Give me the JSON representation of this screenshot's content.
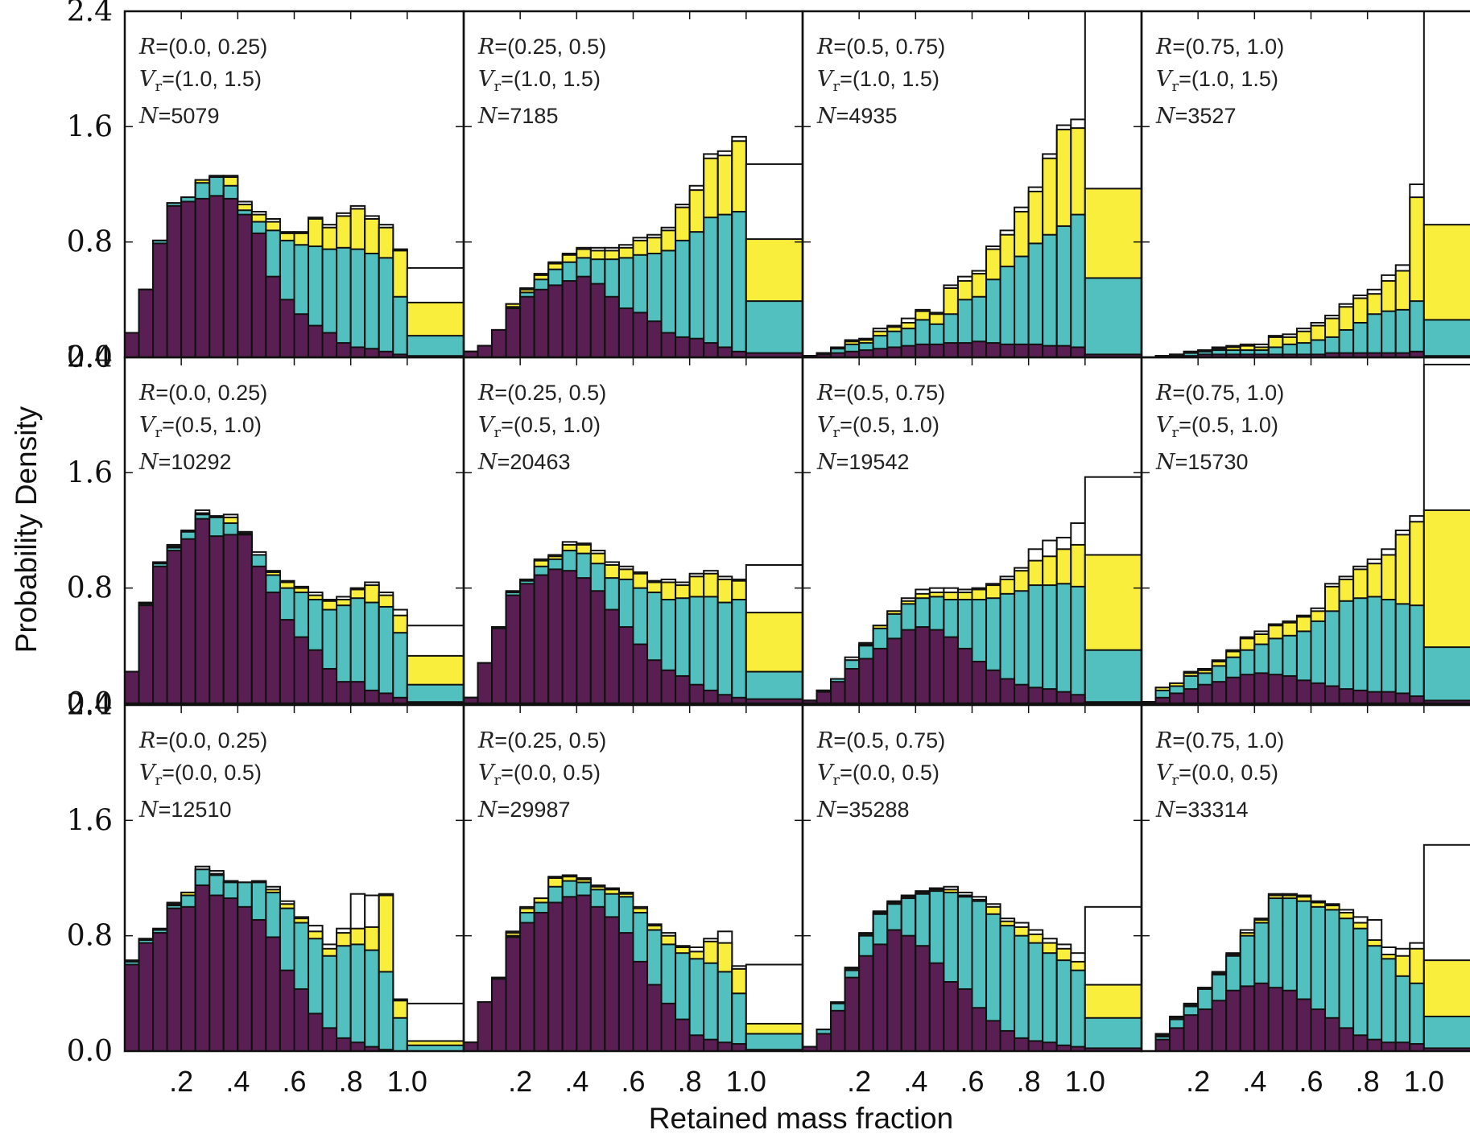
{
  "figure": {
    "ylabel": "Probability Density",
    "xlabel": "Retained mass fraction",
    "colors": {
      "purple": "#5a1f52",
      "teal": "#52c0bf",
      "yellow": "#f9ee3c",
      "outline": "#111111"
    }
  },
  "chart_data": {
    "type": "bar",
    "subtype": "stacked histogram grid",
    "layout": "3 rows x 4 columns, shared axes",
    "xlabel": "Retained mass fraction",
    "ylabel": "Probability Density",
    "ylim": [
      0,
      2.4
    ],
    "yticks": [
      "0.0",
      "0.8",
      "1.6",
      "2.4"
    ],
    "xticks": [
      ".2",
      ".4",
      ".6",
      ".8",
      "1.0"
    ],
    "xtick_values": [
      0.2,
      0.4,
      0.6,
      0.8,
      1.0
    ],
    "bin_edges": [
      0.0,
      0.05,
      0.1,
      0.15,
      0.2,
      0.25,
      0.3,
      0.35,
      0.4,
      0.45,
      0.5,
      0.55,
      0.6,
      0.65,
      0.7,
      0.75,
      0.8,
      0.85,
      0.9,
      0.95,
      1.0,
      1.2
    ],
    "stack_order": [
      "purple",
      "teal",
      "yellow"
    ],
    "panels": [
      {
        "R_text": "=(0.0, 0.25)",
        "Vr_text": "=(1.0, 1.5)",
        "N_text": "=5079",
        "purple": [
          0.17,
          0.47,
          0.79,
          1.05,
          1.08,
          1.1,
          1.12,
          1.1,
          0.99,
          0.86,
          0.56,
          0.4,
          0.3,
          0.22,
          0.17,
          0.1,
          0.07,
          0.06,
          0.04,
          0.02,
          0.01
        ],
        "teal": [
          0.17,
          0.47,
          0.81,
          1.07,
          1.11,
          1.21,
          1.25,
          1.19,
          1.02,
          0.94,
          0.88,
          0.81,
          0.78,
          0.77,
          0.75,
          0.76,
          0.75,
          0.72,
          0.69,
          0.42,
          0.15
        ],
        "yellow": [
          0.17,
          0.47,
          0.81,
          1.07,
          1.11,
          1.23,
          1.25,
          1.25,
          1.06,
          0.99,
          0.94,
          0.86,
          0.86,
          0.96,
          0.9,
          0.98,
          1.03,
          0.96,
          0.9,
          0.74,
          0.38
        ],
        "total": [
          0.17,
          0.47,
          0.81,
          1.07,
          1.11,
          1.23,
          1.26,
          1.26,
          1.08,
          1.01,
          0.96,
          0.87,
          0.87,
          0.97,
          0.92,
          1.0,
          1.05,
          0.98,
          0.92,
          0.75,
          0.62
        ]
      },
      {
        "R_text": "=(0.25, 0.5)",
        "Vr_text": "=(1.0, 1.5)",
        "N_text": "=7185",
        "purple": [
          0.04,
          0.08,
          0.19,
          0.34,
          0.42,
          0.47,
          0.5,
          0.53,
          0.56,
          0.51,
          0.42,
          0.34,
          0.31,
          0.25,
          0.17,
          0.14,
          0.13,
          0.1,
          0.07,
          0.04,
          0.03
        ],
        "teal": [
          0.04,
          0.08,
          0.19,
          0.35,
          0.45,
          0.54,
          0.61,
          0.66,
          0.69,
          0.68,
          0.68,
          0.69,
          0.71,
          0.72,
          0.74,
          0.81,
          0.87,
          0.97,
          0.99,
          1.01,
          0.39
        ],
        "yellow": [
          0.04,
          0.08,
          0.19,
          0.37,
          0.47,
          0.57,
          0.65,
          0.71,
          0.75,
          0.74,
          0.74,
          0.76,
          0.81,
          0.83,
          0.88,
          1.04,
          1.16,
          1.38,
          1.4,
          1.5,
          0.82
        ],
        "total": [
          0.04,
          0.08,
          0.19,
          0.37,
          0.48,
          0.58,
          0.66,
          0.72,
          0.76,
          0.76,
          0.76,
          0.78,
          0.83,
          0.85,
          0.9,
          1.06,
          1.19,
          1.41,
          1.43,
          1.53,
          1.34
        ]
      },
      {
        "R_text": "=(0.5, 0.75)",
        "Vr_text": "=(1.0, 1.5)",
        "N_text": "=4935",
        "purple": [
          0.01,
          0.02,
          0.03,
          0.04,
          0.05,
          0.06,
          0.07,
          0.08,
          0.09,
          0.09,
          0.1,
          0.1,
          0.11,
          0.1,
          0.09,
          0.09,
          0.09,
          0.08,
          0.08,
          0.07,
          0.02
        ],
        "teal": [
          0.01,
          0.03,
          0.06,
          0.09,
          0.1,
          0.15,
          0.18,
          0.2,
          0.26,
          0.23,
          0.3,
          0.4,
          0.42,
          0.54,
          0.63,
          0.7,
          0.79,
          0.85,
          0.91,
          0.99,
          0.55
        ],
        "yellow": [
          0.01,
          0.03,
          0.06,
          0.11,
          0.12,
          0.18,
          0.21,
          0.24,
          0.32,
          0.3,
          0.48,
          0.53,
          0.58,
          0.75,
          0.85,
          1.01,
          1.15,
          1.38,
          1.58,
          1.59,
          1.17
        ],
        "total": [
          0.01,
          0.03,
          0.07,
          0.12,
          0.13,
          0.2,
          0.22,
          0.27,
          0.33,
          0.31,
          0.5,
          0.56,
          0.6,
          0.77,
          0.88,
          1.04,
          1.18,
          1.41,
          1.61,
          1.65,
          2.4
        ]
      },
      {
        "R_text": "=(0.75, 1.0)",
        "Vr_text": "=(1.0, 1.5)",
        "N_text": "=3527",
        "purple": [
          0.0,
          0.0,
          0.01,
          0.01,
          0.02,
          0.02,
          0.02,
          0.02,
          0.02,
          0.02,
          0.02,
          0.02,
          0.02,
          0.03,
          0.03,
          0.03,
          0.03,
          0.03,
          0.03,
          0.04,
          0.01
        ],
        "teal": [
          0.0,
          0.01,
          0.02,
          0.03,
          0.04,
          0.05,
          0.05,
          0.05,
          0.05,
          0.07,
          0.09,
          0.1,
          0.12,
          0.14,
          0.19,
          0.24,
          0.3,
          0.32,
          0.33,
          0.39,
          0.26
        ],
        "yellow": [
          0.0,
          0.01,
          0.02,
          0.04,
          0.05,
          0.06,
          0.07,
          0.08,
          0.07,
          0.14,
          0.14,
          0.18,
          0.22,
          0.27,
          0.35,
          0.41,
          0.44,
          0.53,
          0.6,
          1.11,
          0.92
        ],
        "total": [
          0.0,
          0.01,
          0.02,
          0.04,
          0.05,
          0.07,
          0.08,
          0.09,
          0.09,
          0.15,
          0.16,
          0.2,
          0.24,
          0.29,
          0.37,
          0.43,
          0.47,
          0.57,
          0.64,
          1.2,
          2.6
        ]
      },
      {
        "R_text": "=(0.0, 0.25)",
        "Vr_text": "=(0.5, 1.0)",
        "N_text": "=10292",
        "purple": [
          0.22,
          0.68,
          0.95,
          1.06,
          1.14,
          1.28,
          1.16,
          1.17,
          1.17,
          0.95,
          0.77,
          0.58,
          0.46,
          0.37,
          0.24,
          0.15,
          0.15,
          0.09,
          0.07,
          0.04,
          0.01
        ],
        "teal": [
          0.22,
          0.69,
          0.97,
          1.08,
          1.19,
          1.31,
          1.29,
          1.25,
          1.17,
          1.03,
          0.89,
          0.8,
          0.77,
          0.72,
          0.65,
          0.68,
          0.73,
          0.7,
          0.67,
          0.49,
          0.13
        ],
        "yellow": [
          0.22,
          0.69,
          0.97,
          1.09,
          1.19,
          1.32,
          1.29,
          1.29,
          1.18,
          1.03,
          0.91,
          0.84,
          0.8,
          0.75,
          0.71,
          0.72,
          0.79,
          0.82,
          0.75,
          0.61,
          0.33
        ],
        "total": [
          0.22,
          0.7,
          0.98,
          1.1,
          1.2,
          1.34,
          1.3,
          1.31,
          1.19,
          1.05,
          0.92,
          0.85,
          0.81,
          0.77,
          0.72,
          0.74,
          0.8,
          0.84,
          0.77,
          0.65,
          0.54
        ]
      },
      {
        "R_text": "=(0.25, 0.5)",
        "Vr_text": "=(0.5, 1.0)",
        "N_text": "=20463",
        "purple": [
          0.04,
          0.28,
          0.52,
          0.75,
          0.83,
          0.89,
          0.93,
          0.92,
          0.87,
          0.78,
          0.65,
          0.53,
          0.41,
          0.3,
          0.23,
          0.19,
          0.13,
          0.09,
          0.06,
          0.04,
          0.03
        ],
        "teal": [
          0.04,
          0.28,
          0.53,
          0.77,
          0.85,
          0.95,
          1.0,
          1.06,
          1.04,
          0.97,
          0.87,
          0.86,
          0.8,
          0.77,
          0.72,
          0.73,
          0.74,
          0.74,
          0.7,
          0.72,
          0.22
        ],
        "yellow": [
          0.04,
          0.28,
          0.53,
          0.77,
          0.86,
          0.99,
          1.02,
          1.1,
          1.1,
          1.04,
          0.96,
          0.93,
          0.9,
          0.84,
          0.84,
          0.82,
          0.88,
          0.9,
          0.86,
          0.85,
          0.63
        ],
        "total": [
          0.04,
          0.28,
          0.53,
          0.78,
          0.86,
          1.0,
          1.03,
          1.12,
          1.11,
          1.06,
          0.98,
          0.95,
          0.91,
          0.85,
          0.86,
          0.84,
          0.9,
          0.92,
          0.88,
          0.86,
          0.96
        ]
      },
      {
        "R_text": "=(0.5, 0.75)",
        "Vr_text": "=(0.5, 1.0)",
        "N_text": "=19542",
        "purple": [
          0.02,
          0.08,
          0.15,
          0.24,
          0.31,
          0.38,
          0.45,
          0.51,
          0.53,
          0.51,
          0.46,
          0.38,
          0.29,
          0.23,
          0.17,
          0.13,
          0.11,
          0.1,
          0.08,
          0.06,
          0.01
        ],
        "teal": [
          0.02,
          0.09,
          0.17,
          0.3,
          0.4,
          0.52,
          0.62,
          0.69,
          0.73,
          0.74,
          0.72,
          0.72,
          0.72,
          0.73,
          0.76,
          0.78,
          0.82,
          0.82,
          0.83,
          0.81,
          0.37
        ],
        "yellow": [
          0.02,
          0.09,
          0.17,
          0.3,
          0.41,
          0.54,
          0.64,
          0.71,
          0.76,
          0.77,
          0.77,
          0.77,
          0.79,
          0.82,
          0.86,
          0.92,
          0.99,
          1.02,
          1.07,
          1.1,
          1.03
        ],
        "total": [
          0.02,
          0.09,
          0.17,
          0.32,
          0.42,
          0.54,
          0.64,
          0.73,
          0.79,
          0.8,
          0.8,
          0.79,
          0.8,
          0.83,
          0.88,
          0.94,
          1.07,
          1.13,
          1.15,
          1.25,
          1.57
        ]
      },
      {
        "R_text": "=(0.75, 1.0)",
        "Vr_text": "=(0.5, 1.0)",
        "N_text": "=15730",
        "purple": [
          0.01,
          0.04,
          0.07,
          0.1,
          0.13,
          0.15,
          0.18,
          0.2,
          0.21,
          0.2,
          0.19,
          0.16,
          0.14,
          0.12,
          0.1,
          0.09,
          0.08,
          0.08,
          0.07,
          0.05,
          0.02
        ],
        "teal": [
          0.01,
          0.09,
          0.12,
          0.19,
          0.21,
          0.26,
          0.32,
          0.37,
          0.41,
          0.45,
          0.47,
          0.5,
          0.57,
          0.64,
          0.71,
          0.73,
          0.74,
          0.72,
          0.69,
          0.68,
          0.39
        ],
        "yellow": [
          0.01,
          0.11,
          0.14,
          0.21,
          0.23,
          0.29,
          0.36,
          0.45,
          0.48,
          0.54,
          0.56,
          0.6,
          0.64,
          0.81,
          0.86,
          0.93,
          0.97,
          1.03,
          1.17,
          1.26,
          1.34
        ],
        "total": [
          0.01,
          0.11,
          0.14,
          0.22,
          0.24,
          0.3,
          0.37,
          0.46,
          0.5,
          0.55,
          0.57,
          0.61,
          0.66,
          0.83,
          0.88,
          0.95,
          1.0,
          1.07,
          1.2,
          1.3,
          2.35
        ]
      },
      {
        "R_text": "=(0.0, 0.25)",
        "Vr_text": "=(0.0, 0.5)",
        "N_text": "=12510",
        "purple": [
          0.6,
          0.75,
          0.82,
          0.99,
          1.0,
          1.15,
          1.08,
          1.06,
          1.0,
          0.91,
          0.79,
          0.56,
          0.43,
          0.26,
          0.16,
          0.09,
          0.06,
          0.03,
          0.01,
          0.0,
          0.0
        ],
        "teal": [
          0.62,
          0.77,
          0.84,
          1.01,
          1.08,
          1.26,
          1.22,
          1.17,
          1.17,
          1.17,
          1.1,
          0.99,
          0.89,
          0.78,
          0.66,
          0.73,
          0.74,
          0.7,
          0.55,
          0.23,
          0.04
        ],
        "yellow": [
          0.62,
          0.77,
          0.84,
          1.02,
          1.1,
          1.26,
          1.23,
          1.18,
          1.17,
          1.17,
          1.12,
          1.02,
          0.92,
          0.83,
          0.71,
          0.82,
          0.85,
          0.86,
          1.08,
          0.35,
          0.07
        ],
        "total": [
          0.63,
          0.78,
          0.85,
          1.03,
          1.1,
          1.28,
          1.25,
          1.18,
          1.17,
          1.18,
          1.14,
          1.04,
          0.93,
          0.87,
          0.74,
          0.85,
          1.09,
          1.08,
          1.09,
          0.36,
          0.33
        ]
      },
      {
        "R_text": "=(0.25, 0.5)",
        "Vr_text": "=(0.0, 0.5)",
        "N_text": "=29987",
        "purple": [
          0.06,
          0.34,
          0.5,
          0.79,
          0.89,
          0.96,
          1.03,
          1.07,
          1.08,
          1.0,
          0.93,
          0.82,
          0.62,
          0.46,
          0.33,
          0.22,
          0.11,
          0.08,
          0.06,
          0.05,
          0.01
        ],
        "teal": [
          0.06,
          0.34,
          0.5,
          0.8,
          0.96,
          1.03,
          1.14,
          1.18,
          1.17,
          1.12,
          1.09,
          1.07,
          0.96,
          0.84,
          0.74,
          0.68,
          0.64,
          0.61,
          0.55,
          0.4,
          0.12
        ],
        "yellow": [
          0.06,
          0.34,
          0.51,
          0.82,
          0.99,
          1.06,
          1.2,
          1.21,
          1.19,
          1.14,
          1.12,
          1.09,
          0.99,
          0.87,
          0.8,
          0.72,
          0.69,
          0.76,
          0.75,
          0.57,
          0.19
        ],
        "total": [
          0.06,
          0.34,
          0.51,
          0.83,
          1.0,
          1.06,
          1.21,
          1.22,
          1.2,
          1.15,
          1.13,
          1.1,
          1.0,
          0.88,
          0.82,
          0.73,
          0.72,
          0.78,
          0.83,
          0.59,
          0.6
        ]
      },
      {
        "R_text": "=(0.5, 0.75)",
        "Vr_text": "=(0.0, 0.5)",
        "N_text": "=35288",
        "purple": [
          0.03,
          0.12,
          0.28,
          0.51,
          0.66,
          0.74,
          0.84,
          0.8,
          0.73,
          0.61,
          0.48,
          0.43,
          0.3,
          0.21,
          0.14,
          0.09,
          0.07,
          0.06,
          0.04,
          0.03,
          0.02
        ],
        "teal": [
          0.03,
          0.15,
          0.33,
          0.56,
          0.8,
          0.95,
          1.02,
          1.06,
          1.09,
          1.11,
          1.1,
          1.07,
          1.04,
          0.95,
          0.87,
          0.8,
          0.75,
          0.68,
          0.63,
          0.56,
          0.23
        ],
        "yellow": [
          0.03,
          0.15,
          0.33,
          0.57,
          0.81,
          0.96,
          1.03,
          1.07,
          1.1,
          1.12,
          1.12,
          1.08,
          1.05,
          1.0,
          0.9,
          0.86,
          0.81,
          0.75,
          0.71,
          0.62,
          0.46
        ],
        "total": [
          0.03,
          0.15,
          0.34,
          0.58,
          0.82,
          0.97,
          1.04,
          1.08,
          1.11,
          1.13,
          1.14,
          1.1,
          1.07,
          1.02,
          0.92,
          0.89,
          0.84,
          0.78,
          0.74,
          0.68,
          1.0
        ]
      },
      {
        "R_text": "=(0.75, 1.0)",
        "Vr_text": "=(0.0, 0.5)",
        "N_text": "=33314",
        "purple": [
          0.0,
          0.08,
          0.16,
          0.25,
          0.29,
          0.35,
          0.42,
          0.45,
          0.47,
          0.44,
          0.42,
          0.36,
          0.29,
          0.23,
          0.16,
          0.11,
          0.08,
          0.06,
          0.06,
          0.05,
          0.02
        ],
        "teal": [
          0.0,
          0.1,
          0.22,
          0.31,
          0.43,
          0.53,
          0.66,
          0.8,
          0.89,
          1.06,
          1.06,
          1.04,
          1.0,
          0.98,
          0.92,
          0.85,
          0.73,
          0.64,
          0.52,
          0.47,
          0.24
        ],
        "yellow": [
          0.0,
          0.11,
          0.23,
          0.32,
          0.44,
          0.54,
          0.67,
          0.82,
          0.91,
          1.08,
          1.08,
          1.07,
          1.03,
          1.01,
          0.96,
          0.89,
          0.77,
          0.67,
          0.66,
          0.71,
          0.63
        ],
        "total": [
          0.0,
          0.12,
          0.24,
          0.33,
          0.44,
          0.55,
          0.68,
          0.84,
          0.92,
          1.09,
          1.09,
          1.08,
          1.04,
          1.02,
          0.98,
          0.93,
          0.91,
          0.72,
          0.71,
          0.75,
          1.43
        ]
      }
    ]
  }
}
